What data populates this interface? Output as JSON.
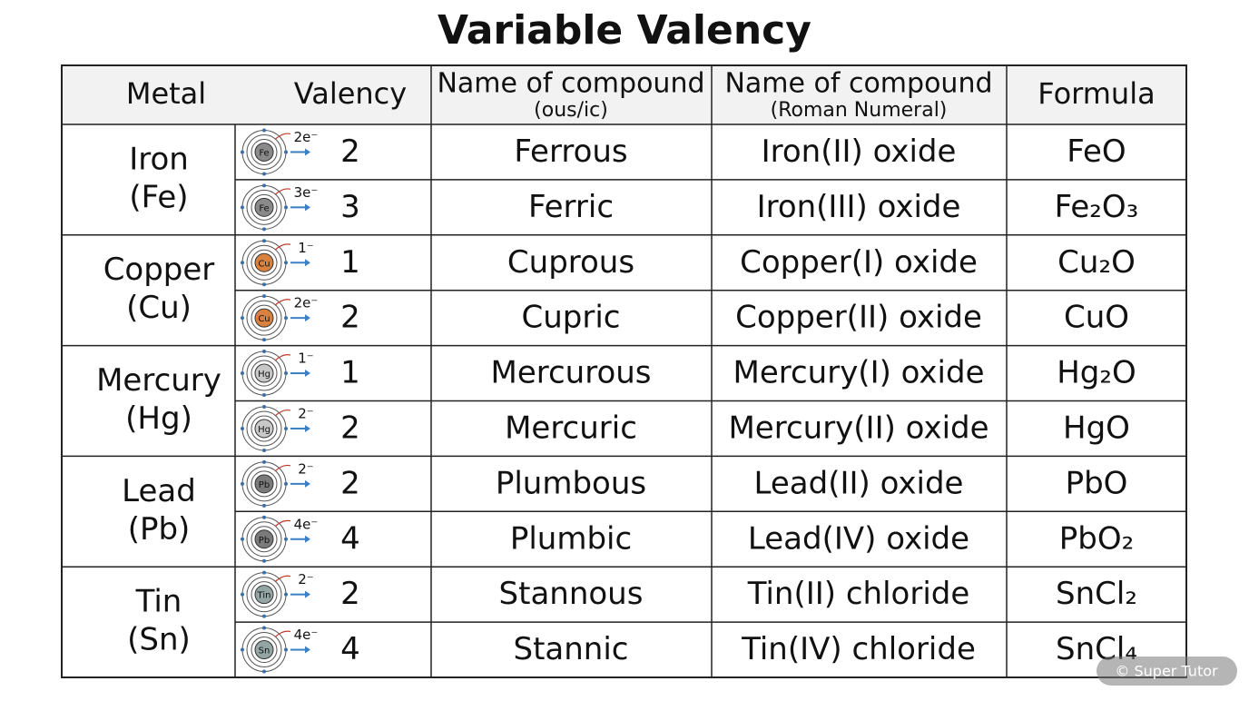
{
  "title": "Variable Valency",
  "table": {
    "headers": {
      "metal": "Metal",
      "valency": "Valency",
      "ous_ic": {
        "main": "Name of compound",
        "sub": "(ous/ic)"
      },
      "roman": {
        "main": "Name of compound",
        "sub": "(Roman Numeral)"
      },
      "formula": "Formula"
    },
    "groups": [
      {
        "metal": "Iron",
        "symbol": "(Fe)",
        "rows": [
          {
            "atom": "Fe",
            "color": "#8a8a8a",
            "charge": "2e⁻",
            "valency": 2,
            "ous_ic": "Ferrous",
            "roman": "Iron(II) oxide",
            "formula": "FeO"
          },
          {
            "atom": "Fe",
            "color": "#8a8a8a",
            "charge": "3e⁻",
            "valency": 3,
            "ous_ic": "Ferric",
            "roman": "Iron(III) oxide",
            "formula": "Fe₂O₃"
          }
        ]
      },
      {
        "metal": "Copper",
        "symbol": "(Cu)",
        "rows": [
          {
            "atom": "Cu",
            "color": "#d9823f",
            "charge": "1⁻",
            "valency": 1,
            "ous_ic": "Cuprous",
            "roman": "Copper(I) oxide",
            "formula": "Cu₂O"
          },
          {
            "atom": "Cu",
            "color": "#d9823f",
            "charge": "2e⁻",
            "valency": 2,
            "ous_ic": "Cupric",
            "roman": "Copper(II) oxide",
            "formula": "CuO"
          }
        ]
      },
      {
        "metal": "Mercury",
        "symbol": "(Hg)",
        "rows": [
          {
            "atom": "Hg",
            "color": "#c8c8c8",
            "charge": "1⁻",
            "valency": 1,
            "ous_ic": "Mercurous",
            "roman": "Mercury(I) oxide",
            "formula": "Hg₂O"
          },
          {
            "atom": "Hg",
            "color": "#c8c8c8",
            "charge": "2⁻",
            "valency": 2,
            "ous_ic": "Mercuric",
            "roman": "Mercury(II) oxide",
            "formula": "HgO"
          }
        ]
      },
      {
        "metal": "Lead",
        "symbol": "(Pb)",
        "rows": [
          {
            "atom": "Pb",
            "color": "#7a7a7a",
            "charge": "2⁻",
            "valency": 2,
            "ous_ic": "Plumbous",
            "roman": "Lead(II) oxide",
            "formula": "PbO"
          },
          {
            "atom": "Pb",
            "color": "#7a7a7a",
            "charge": "4e⁻",
            "valency": 4,
            "ous_ic": "Plumbic",
            "roman": "Lead(IV) oxide",
            "formula": "PbO₂"
          }
        ]
      },
      {
        "metal": "Tin",
        "symbol": "(Sn)",
        "rows": [
          {
            "atom": "Tin",
            "color": "#93a6a4",
            "charge": "2⁻",
            "valency": 2,
            "ous_ic": "Stannous",
            "roman": "Tin(II) chloride",
            "formula": "SnCl₂"
          },
          {
            "atom": "Sn",
            "color": "#93a6a4",
            "charge": "4e⁻",
            "valency": 4,
            "ous_ic": "Stannic",
            "roman": "Tin(IV) chloride",
            "formula": "SnCl₄"
          }
        ]
      }
    ]
  },
  "watermark": "© Super Tutor"
}
